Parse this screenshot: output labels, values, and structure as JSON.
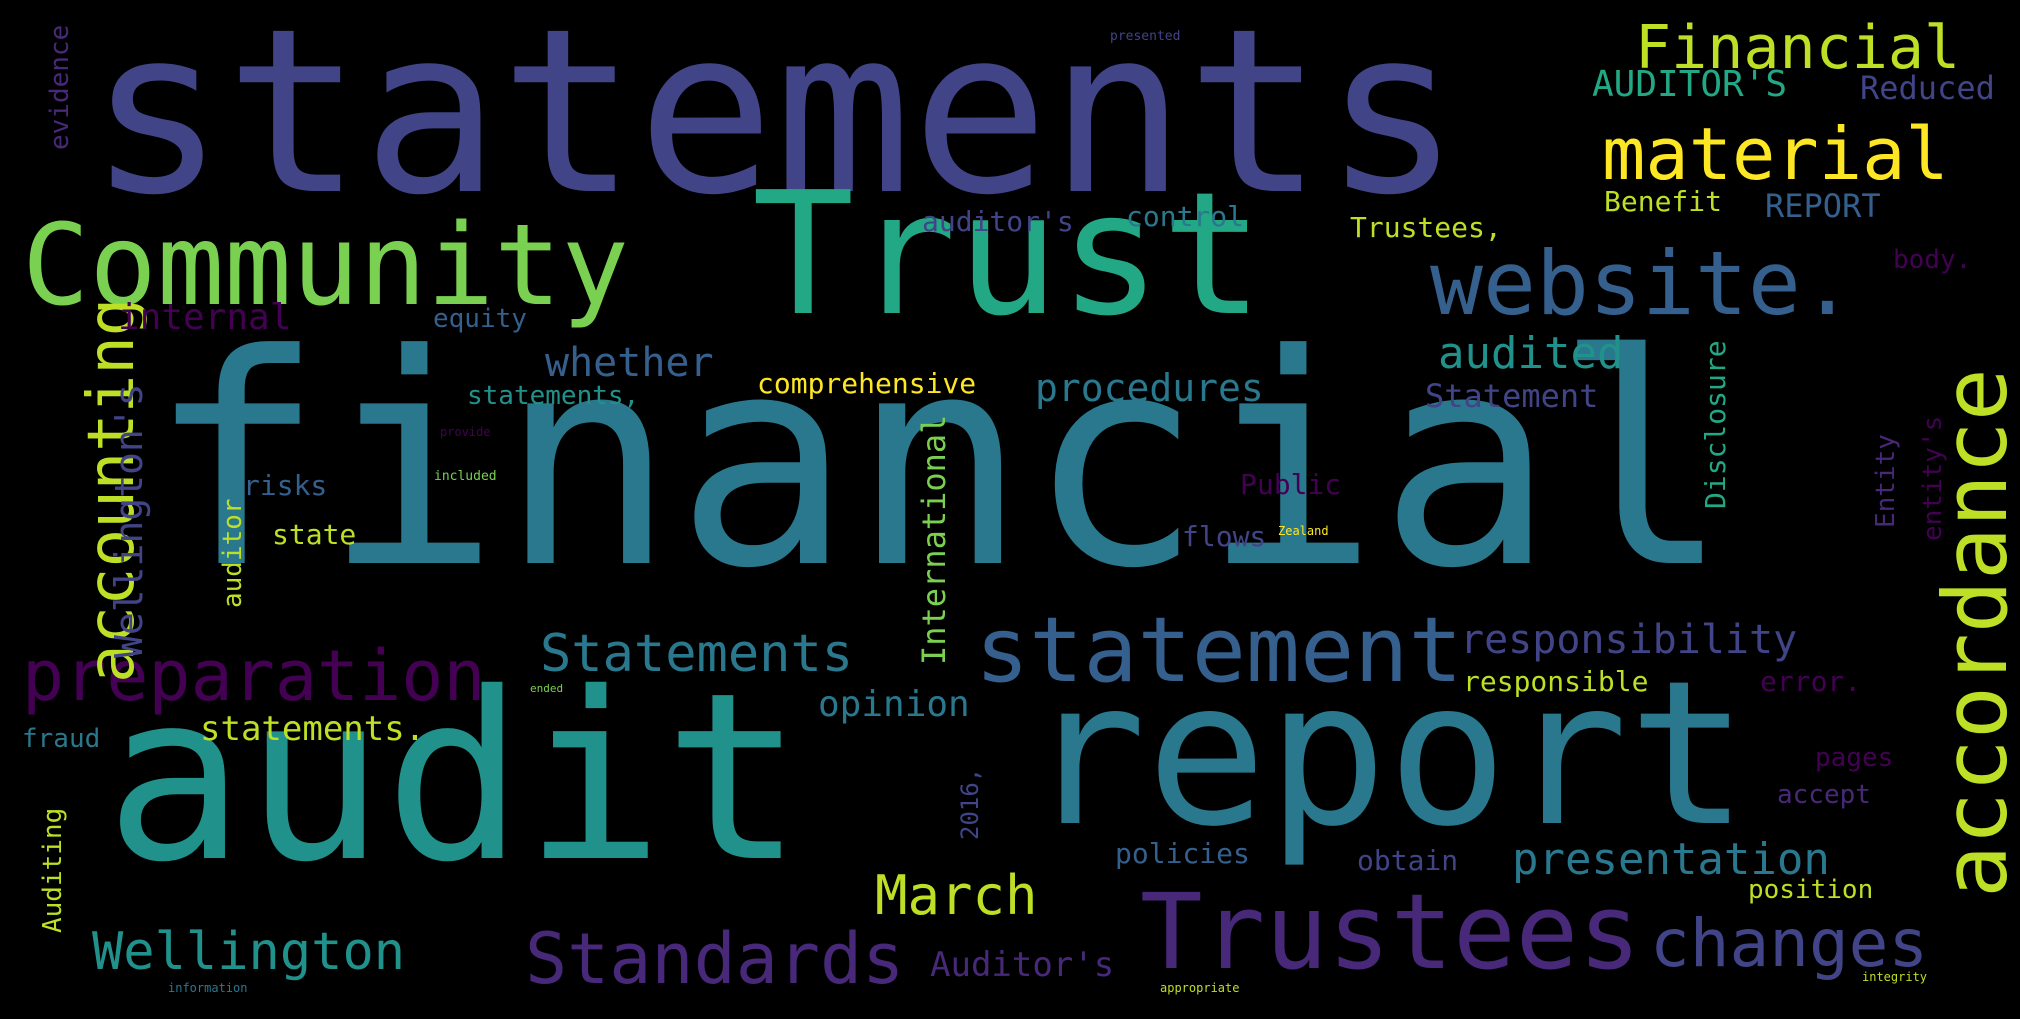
{
  "colors": {
    "background": "#000000",
    "indigo": "#414487",
    "blue": "#355f8d",
    "teal": "#2a788e",
    "teal_green": "#21918c",
    "green": "#22a884",
    "lime": "#7ad151",
    "yellow": "#bddf26",
    "bright_yellow": "#fde725",
    "purple": "#482878",
    "dark_purple": "#440154"
  },
  "words": [
    {
      "key": "statements",
      "text": "statements"
    },
    {
      "key": "financial",
      "text": "financial"
    },
    {
      "key": "audit",
      "text": "audit"
    },
    {
      "key": "trust",
      "text": "Trust"
    },
    {
      "key": "report",
      "text": "report"
    },
    {
      "key": "community",
      "text": "Community"
    },
    {
      "key": "trustees",
      "text": "Trustees"
    },
    {
      "key": "statement",
      "text": "statement"
    },
    {
      "key": "website",
      "text": "website."
    },
    {
      "key": "accordance",
      "text": "accordance"
    },
    {
      "key": "preparation",
      "text": "preparation"
    },
    {
      "key": "material",
      "text": "material"
    },
    {
      "key": "financial_cap",
      "text": "Financial"
    },
    {
      "key": "accounting",
      "text": "accounting"
    },
    {
      "key": "standards",
      "text": "Standards"
    },
    {
      "key": "changes",
      "text": "changes"
    },
    {
      "key": "statements_cap",
      "text": "Statements"
    },
    {
      "key": "wellington",
      "text": "Wellington"
    },
    {
      "key": "march",
      "text": "March"
    },
    {
      "key": "presentation",
      "text": "presentation"
    },
    {
      "key": "audited",
      "text": "audited"
    },
    {
      "key": "responsibility",
      "text": "responsibility"
    },
    {
      "key": "whether",
      "text": "whether"
    },
    {
      "key": "procedures",
      "text": "procedures"
    },
    {
      "key": "wellingtons",
      "text": "Wellington's"
    },
    {
      "key": "internal",
      "text": "internal"
    },
    {
      "key": "opinion",
      "text": "opinion"
    },
    {
      "key": "auditors_cap",
      "text": "AUDITOR'S"
    },
    {
      "key": "reduced",
      "text": "Reduced"
    },
    {
      "key": "auditors_title",
      "text": "Auditor's"
    },
    {
      "key": "statement_cap",
      "text": "Statement"
    },
    {
      "key": "statements_period",
      "text": "statements."
    },
    {
      "key": "international",
      "text": "International"
    },
    {
      "key": "report_cap",
      "text": "REPORT"
    },
    {
      "key": "comprehensive",
      "text": "comprehensive"
    },
    {
      "key": "benefit",
      "text": "Benefit"
    },
    {
      "key": "disclosure",
      "text": "Disclosure"
    },
    {
      "key": "responsible",
      "text": "responsible"
    },
    {
      "key": "auditors_lower",
      "text": "auditor's"
    },
    {
      "key": "control",
      "text": "control"
    },
    {
      "key": "trustees_comma",
      "text": "Trustees,"
    },
    {
      "key": "public",
      "text": "Public"
    },
    {
      "key": "entitys",
      "text": "entity's"
    },
    {
      "key": "entity",
      "text": "Entity"
    },
    {
      "key": "flows",
      "text": "flows"
    },
    {
      "key": "statements_comma",
      "text": "statements,"
    },
    {
      "key": "equity",
      "text": "equity"
    },
    {
      "key": "policies",
      "text": "policies"
    },
    {
      "key": "obtain",
      "text": "obtain"
    },
    {
      "key": "position",
      "text": "position"
    },
    {
      "key": "accept",
      "text": "accept"
    },
    {
      "key": "pages",
      "text": "pages"
    },
    {
      "key": "error",
      "text": "error."
    },
    {
      "key": "body",
      "text": "body."
    },
    {
      "key": "risks",
      "text": "risks"
    },
    {
      "key": "state",
      "text": "state"
    },
    {
      "key": "fraud",
      "text": "fraud"
    },
    {
      "key": "evidence",
      "text": "evidence"
    },
    {
      "key": "auditing",
      "text": "Auditing"
    },
    {
      "key": "auditor",
      "text": "auditor"
    },
    {
      "key": "year2016",
      "text": "2016,"
    },
    {
      "key": "presented",
      "text": "presented"
    },
    {
      "key": "provide",
      "text": "provide"
    },
    {
      "key": "included",
      "text": "included"
    },
    {
      "key": "zealand",
      "text": "Zealand"
    },
    {
      "key": "ended",
      "text": "ended"
    },
    {
      "key": "information",
      "text": "information"
    },
    {
      "key": "appropriate",
      "text": "appropriate"
    },
    {
      "key": "integrity",
      "text": "integrity"
    }
  ]
}
